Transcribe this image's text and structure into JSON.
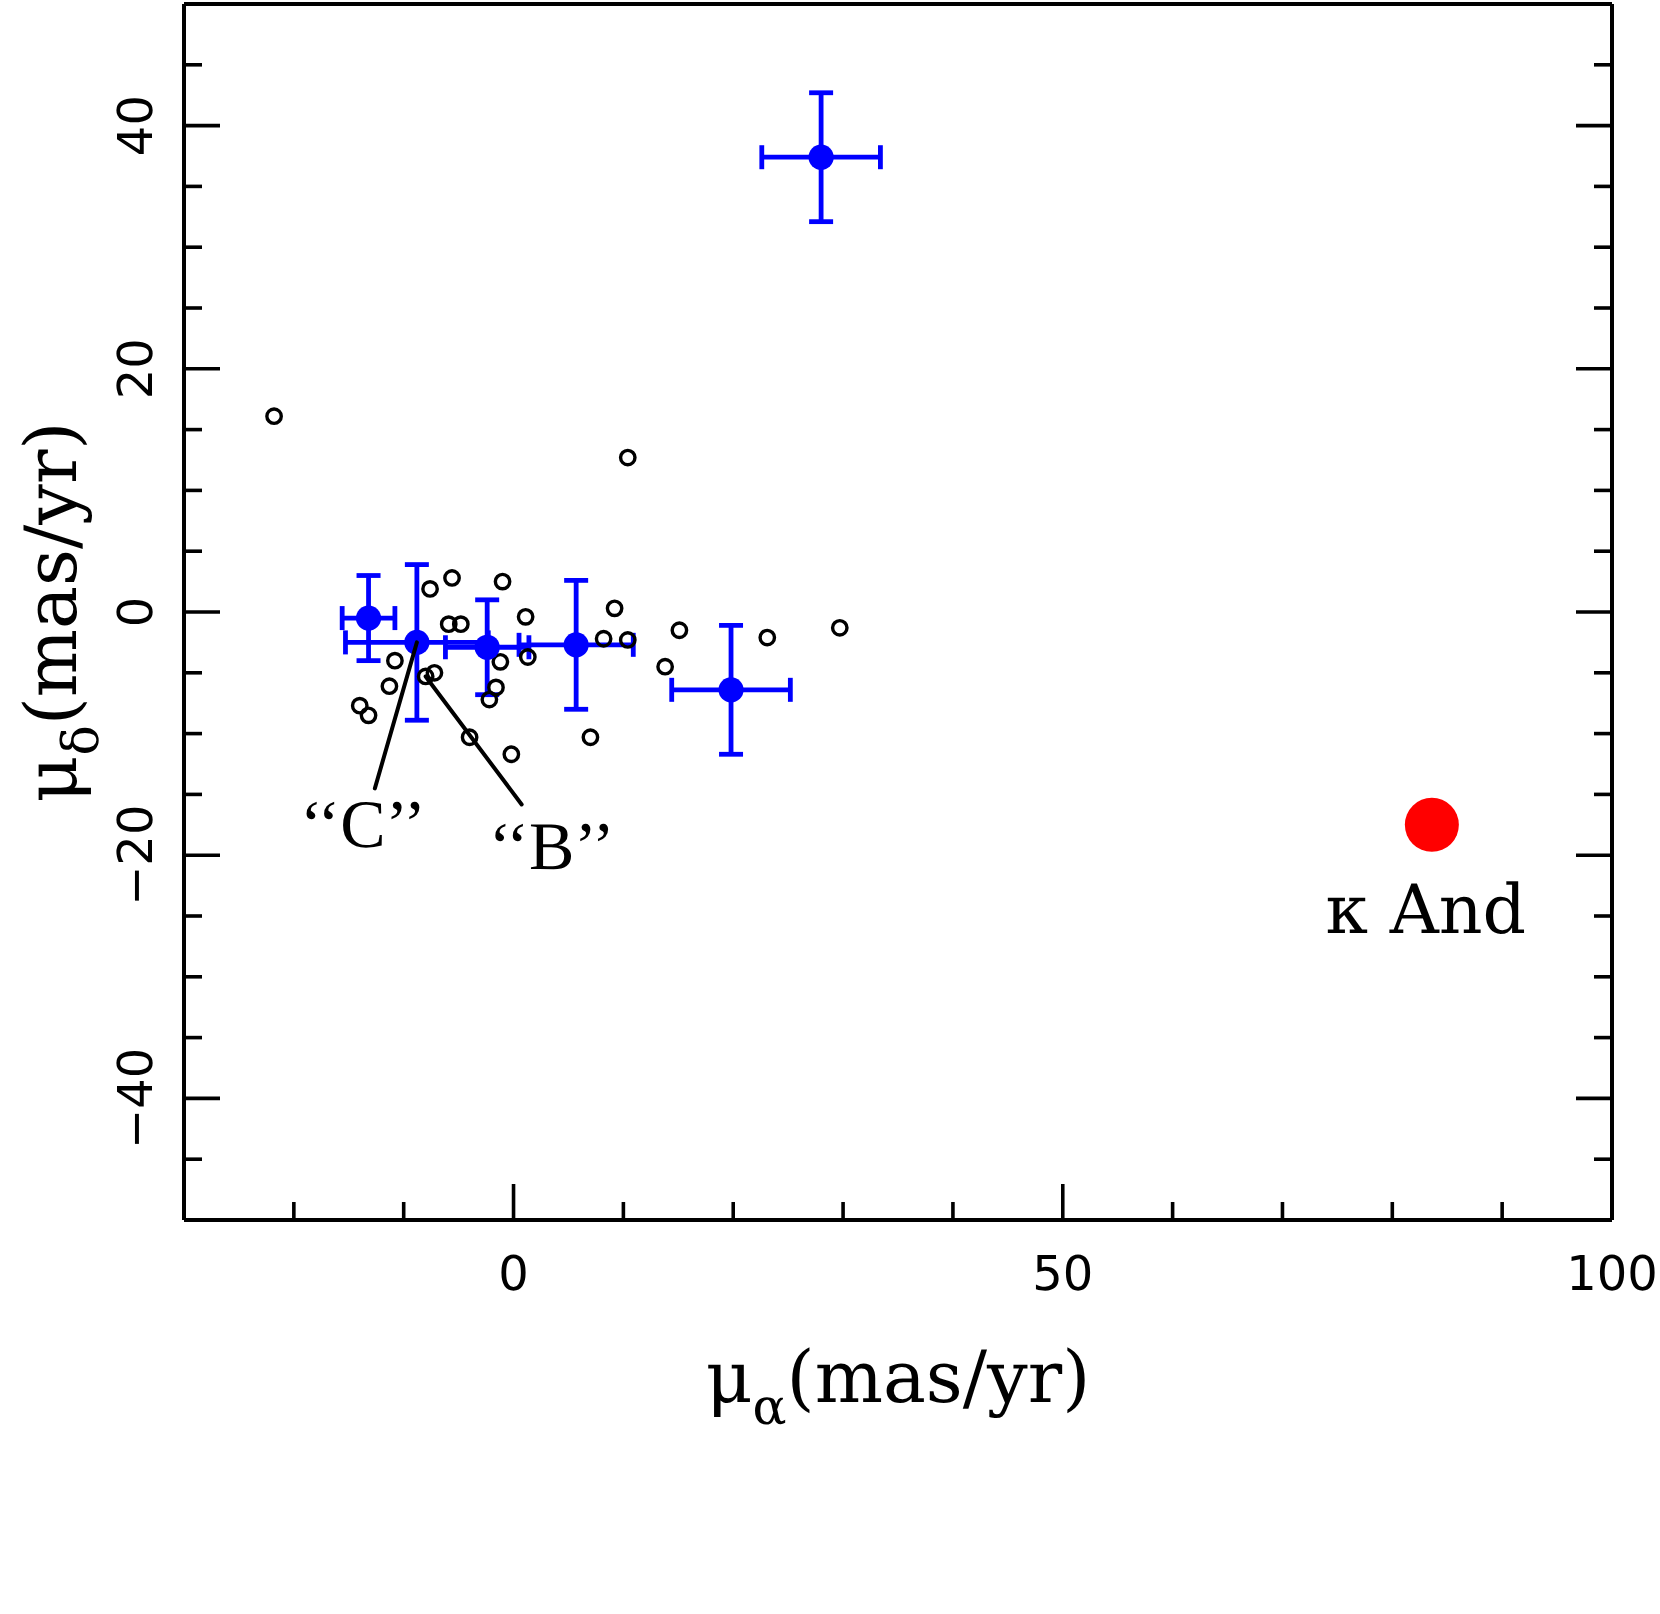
{
  "chart_data": {
    "type": "scatter",
    "xlabel": "μ$_{α}$(mas/yr)",
    "ylabel": "μ$_{δ}$(mas/yr)",
    "xlim": [
      -30,
      100
    ],
    "ylim": [
      -50,
      50
    ],
    "marker": "circle",
    "xticks": [
      {
        "value": -20,
        "label": null
      },
      {
        "value": -10,
        "label": null
      },
      0,
      {
        "value": 10,
        "label": null
      },
      {
        "value": 20,
        "label": null
      },
      {
        "value": 30,
        "label": null
      },
      {
        "value": 40,
        "label": null
      },
      50,
      {
        "value": 60,
        "label": null
      },
      {
        "value": 70,
        "label": null
      },
      {
        "value": 80,
        "label": null
      },
      {
        "value": 90,
        "label": null
      },
      100
    ],
    "yticks": [
      {
        "value": -45,
        "label": null
      },
      {
        "value": -40,
        "label": "−40"
      },
      {
        "value": -35,
        "label": null
      },
      {
        "value": -30,
        "label": null
      },
      {
        "value": -25,
        "label": null
      },
      {
        "value": -20,
        "label": "−20"
      },
      {
        "value": -15,
        "label": null
      },
      {
        "value": -10,
        "label": null
      },
      {
        "value": -5,
        "label": null
      },
      0,
      {
        "value": 5,
        "label": null
      },
      {
        "value": 10,
        "label": null
      },
      {
        "value": 15,
        "label": null
      },
      20,
      {
        "value": 25,
        "label": null
      },
      {
        "value": 30,
        "label": null
      },
      {
        "value": 35,
        "label": null
      },
      40,
      {
        "value": 45,
        "label": null
      }
    ],
    "series": [
      {
        "color": "#000000",
        "x": [
          -7.6,
          -5.6,
          -1.0,
          -5.9,
          -4.8,
          1.1,
          1.3,
          -1.2,
          -1.6,
          -2.2,
          -10.8,
          -11.3,
          -14.0,
          -13.2,
          -8.0,
          -7.2,
          -4.0,
          -0.2,
          8.2,
          9.2,
          10.4,
          7.0,
          15.1,
          13.8,
          23.1,
          29.7,
          -21.8,
          10.4
        ],
        "values": [
          1.9,
          2.8,
          2.5,
          -1.0,
          -1.0,
          -0.4,
          -3.7,
          -4.1,
          -6.2,
          -7.2,
          -4.0,
          -6.1,
          -7.7,
          -8.5,
          -5.3,
          -5.0,
          -10.3,
          -11.7,
          -2.2,
          0.3,
          -2.3,
          -10.3,
          -1.5,
          -4.5,
          -2.1,
          -1.3,
          16.1,
          12.7
        ]
      },
      {
        "color": "#0000ff",
        "x": [
          -13.2,
          -8.8,
          -2.4,
          5.7,
          19.8,
          28.0
        ],
        "values": [
          -0.5,
          -2.5,
          -2.9,
          -2.7,
          -6.4,
          37.4
        ],
        "errors": [
          3.5,
          6.4,
          3.9,
          5.3,
          5.3,
          5.3
        ],
        "xerrors": [
          2.4,
          6.5,
          3.8,
          5.2,
          5.4,
          5.4
        ]
      },
      {
        "name": "κ And",
        "color": "#ff0000",
        "x": [
          83.6
        ],
        "values": [
          -17.5
        ]
      }
    ],
    "annotations": [
      {
        "text": "‘‘C’’",
        "x": -8.8,
        "y": -2.5
      },
      {
        "text": "‘‘B’’",
        "x": -8.0,
        "y": -5.3
      }
    ]
  }
}
